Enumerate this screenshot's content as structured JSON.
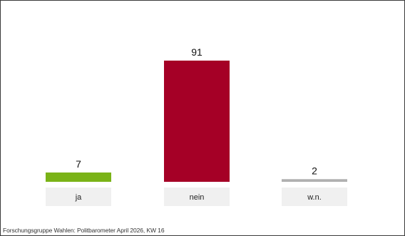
{
  "chart_data": {
    "type": "bar",
    "categories": [
      "ja",
      "nein",
      "w.n."
    ],
    "values": [
      7,
      91,
      2
    ],
    "colors": [
      "#7ab317",
      "#a50026",
      "#b0b0b0"
    ],
    "label_box_color": "#f0f0f0",
    "ylim": [
      0,
      91
    ],
    "grid": false,
    "legend": "none"
  },
  "source": "Forschungsgruppe Wahlen: Politbarometer April 2026, KW 16"
}
